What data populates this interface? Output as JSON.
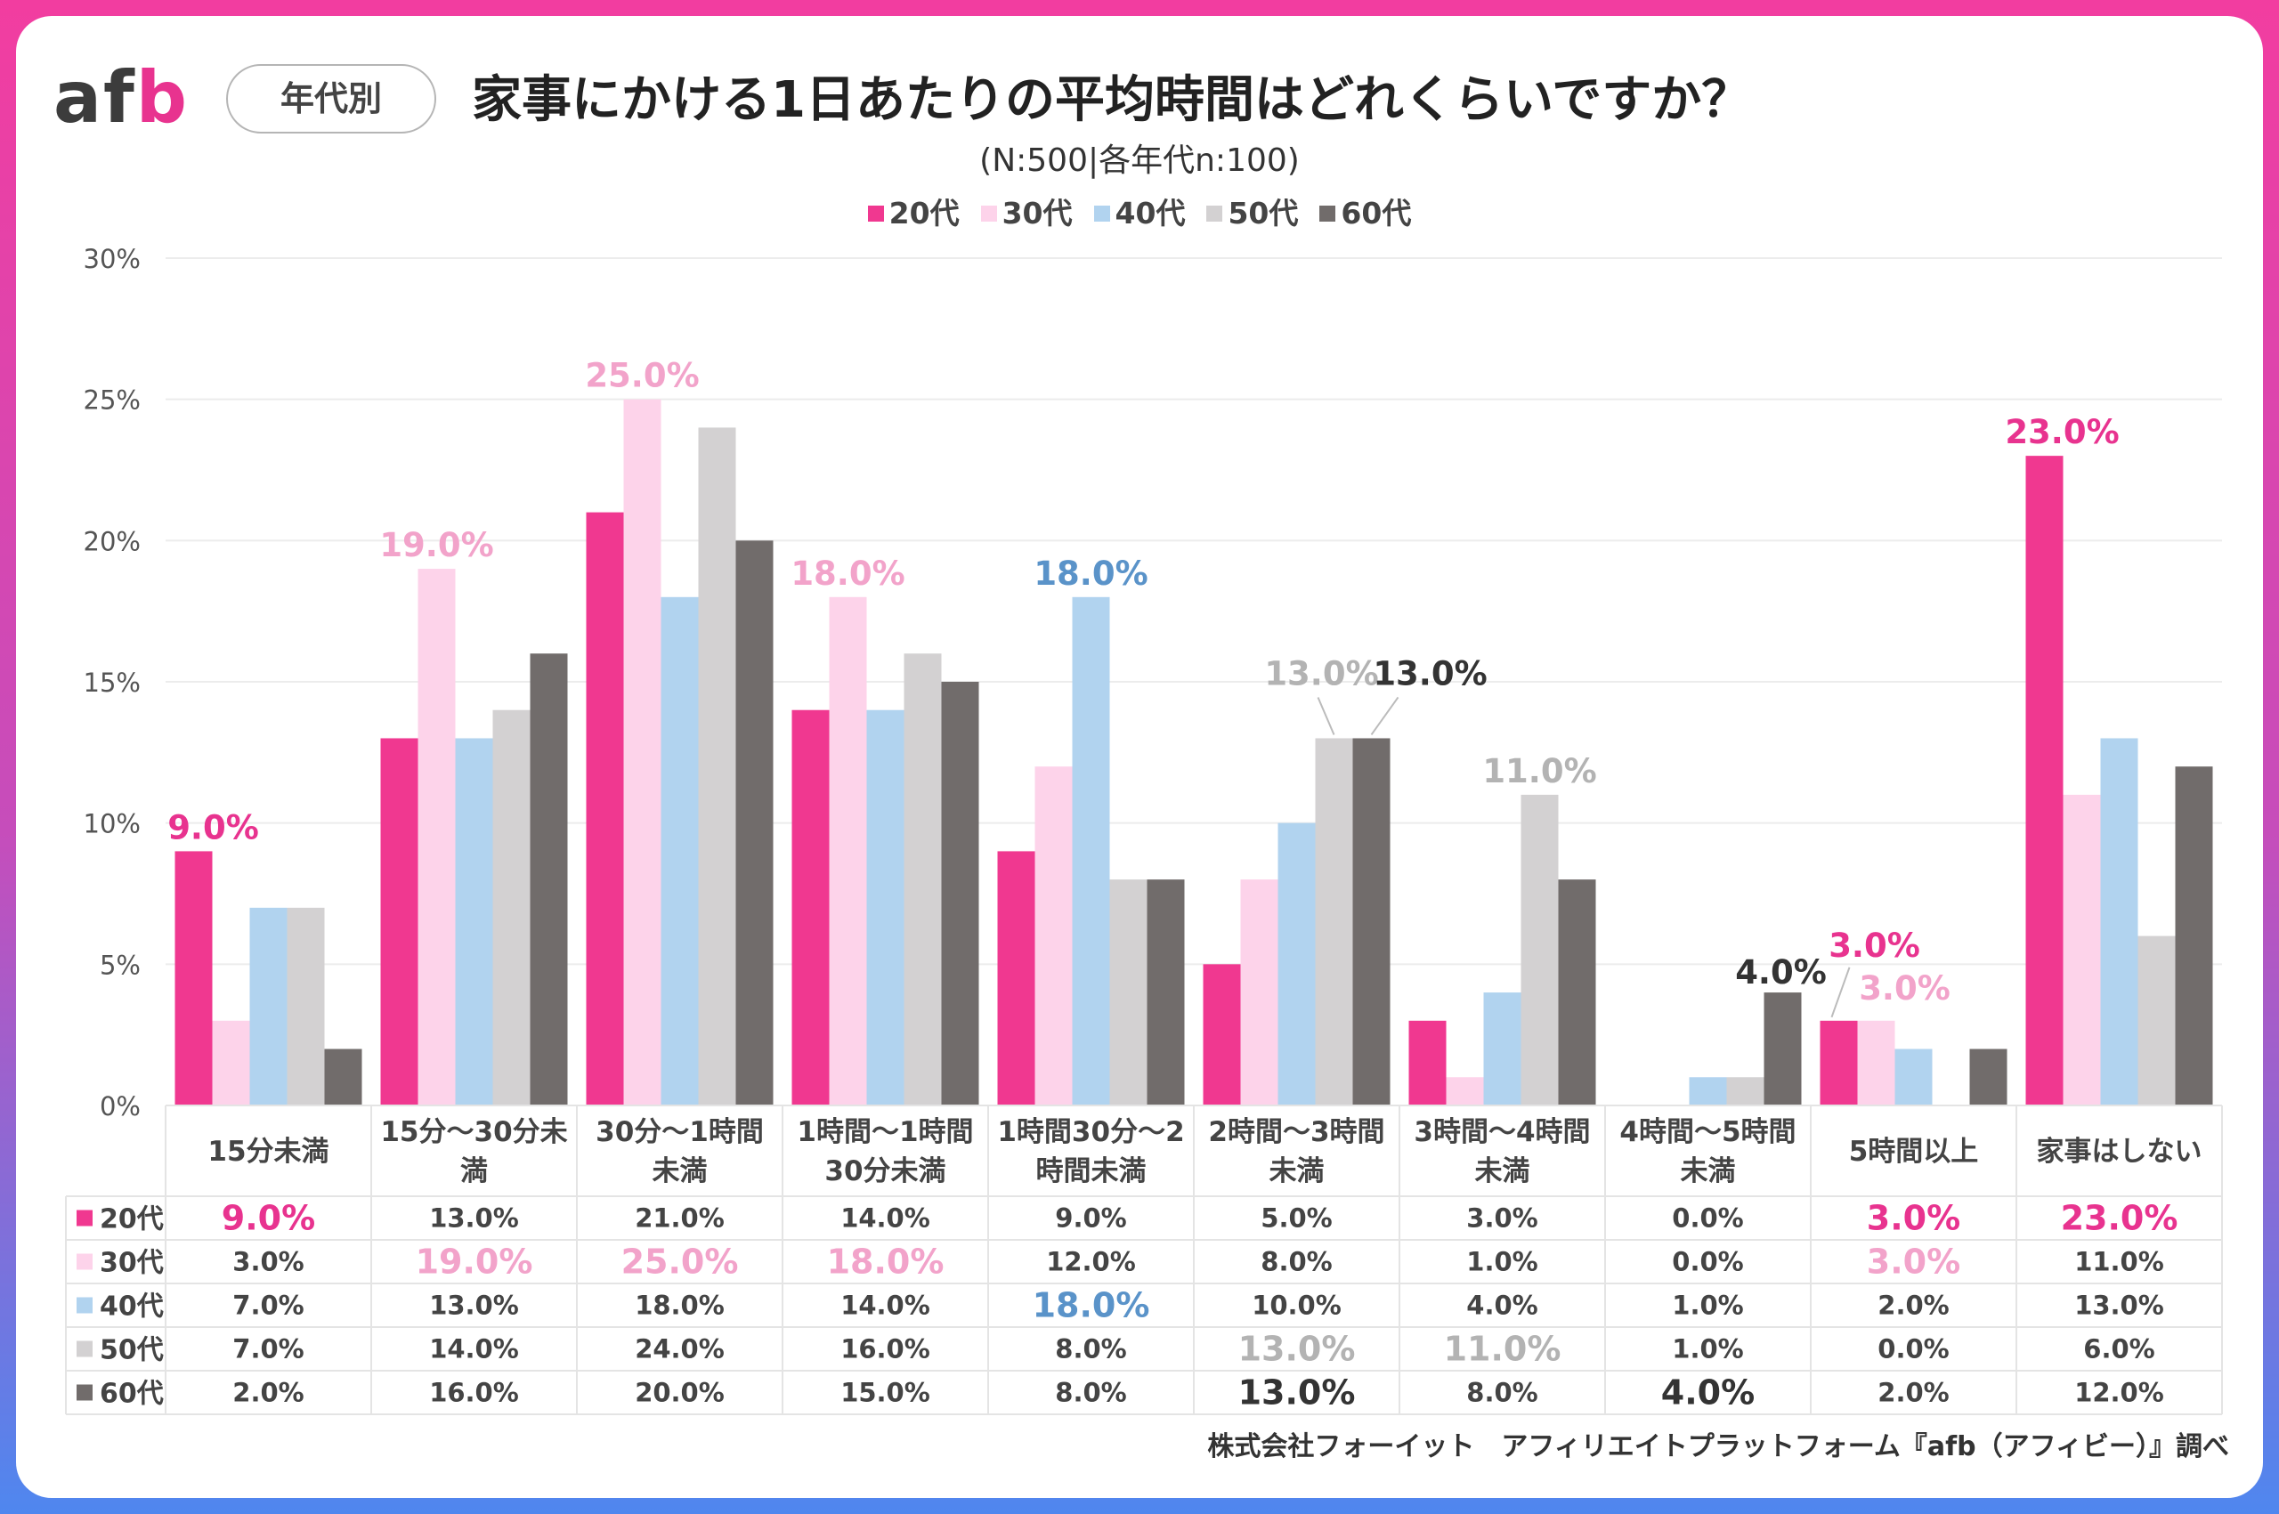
{
  "header": {
    "logo_a": "af",
    "logo_b": "b",
    "tag": "年代別",
    "title": "家事にかける1日あたりの平均時間はどれくらいですか？",
    "subtitle": "(N:500|各年代n:100)"
  },
  "credit": "株式会社フォーイット　アフィリエイトプラットフォーム『afb（アフィビー）』調べ",
  "colors": {
    "s20": "#f03890",
    "s30": "#fdd3ea",
    "s40": "#b1d3ef",
    "s50": "#d3d1d2",
    "s60": "#716c6b",
    "grid": "#ececec",
    "label_pink": "#e8338f",
    "label_lightpink": "#f2a3ca",
    "label_blue": "#5a93c9",
    "label_gray": "#b3b3b3",
    "label_dark": "#333333"
  },
  "chart_data": {
    "type": "bar",
    "title": "家事にかける1日あたりの平均時間はどれくらいですか？",
    "ylim": [
      0,
      30
    ],
    "yticks": [
      "0%",
      "5%",
      "10%",
      "15%",
      "20%",
      "25%",
      "30%"
    ],
    "grid": true,
    "legend_position": "top-center",
    "categories": [
      [
        "15分未満"
      ],
      [
        "15分～30分未",
        "満"
      ],
      [
        "30分～1時間",
        "未満"
      ],
      [
        "1時間～1時間",
        "30分未満"
      ],
      [
        "1時間30分～2",
        "時間未満"
      ],
      [
        "2時間～3時間",
        "未満"
      ],
      [
        "3時間～4時間",
        "未満"
      ],
      [
        "4時間～5時間",
        "未満"
      ],
      [
        "5時間以上"
      ],
      [
        "家事はしない"
      ]
    ],
    "series": [
      {
        "name": "20代",
        "values": [
          9,
          13,
          21,
          14,
          9,
          5,
          3,
          0,
          3,
          23
        ]
      },
      {
        "name": "30代",
        "values": [
          3,
          19,
          25,
          18,
          12,
          8,
          1,
          0,
          3,
          11
        ]
      },
      {
        "name": "40代",
        "values": [
          7,
          13,
          18,
          14,
          18,
          10,
          4,
          1,
          2,
          13
        ]
      },
      {
        "name": "50代",
        "values": [
          7,
          14,
          24,
          16,
          8,
          13,
          11,
          1,
          0,
          6
        ]
      },
      {
        "name": "60代",
        "values": [
          2,
          16,
          20,
          15,
          8,
          13,
          8,
          4,
          2,
          12
        ]
      }
    ],
    "table": [
      [
        "9.0%",
        "13.0%",
        "21.0%",
        "14.0%",
        "9.0%",
        "5.0%",
        "3.0%",
        "0.0%",
        "3.0%",
        "23.0%"
      ],
      [
        "3.0%",
        "19.0%",
        "25.0%",
        "18.0%",
        "12.0%",
        "8.0%",
        "1.0%",
        "0.0%",
        "3.0%",
        "11.0%"
      ],
      [
        "7.0%",
        "13.0%",
        "18.0%",
        "14.0%",
        "18.0%",
        "10.0%",
        "4.0%",
        "1.0%",
        "2.0%",
        "13.0%"
      ],
      [
        "7.0%",
        "14.0%",
        "24.0%",
        "16.0%",
        "8.0%",
        "13.0%",
        "11.0%",
        "1.0%",
        "0.0%",
        "6.0%"
      ],
      [
        "2.0%",
        "16.0%",
        "20.0%",
        "15.0%",
        "8.0%",
        "13.0%",
        "8.0%",
        "4.0%",
        "2.0%",
        "12.0%"
      ]
    ],
    "highlights": [
      {
        "series": 0,
        "category": 0,
        "text": "9.0%",
        "style": "pink"
      },
      {
        "series": 1,
        "category": 1,
        "text": "19.0%",
        "style": "lightpink"
      },
      {
        "series": 1,
        "category": 2,
        "text": "25.0%",
        "style": "lightpink"
      },
      {
        "series": 1,
        "category": 3,
        "text": "18.0%",
        "style": "lightpink"
      },
      {
        "series": 2,
        "category": 4,
        "text": "18.0%",
        "style": "blue"
      },
      {
        "series": 3,
        "category": 5,
        "text": "13.0%",
        "style": "gray"
      },
      {
        "series": 4,
        "category": 5,
        "text": "13.0%",
        "style": "dark"
      },
      {
        "series": 3,
        "category": 6,
        "text": "11.0%",
        "style": "gray"
      },
      {
        "series": 4,
        "category": 7,
        "text": "4.0%",
        "style": "dark"
      },
      {
        "series": 0,
        "category": 8,
        "text": "3.0%",
        "style": "pink"
      },
      {
        "series": 1,
        "category": 8,
        "text": "3.0%",
        "style": "lightpink"
      },
      {
        "series": 0,
        "category": 9,
        "text": "23.0%",
        "style": "pink"
      }
    ]
  }
}
